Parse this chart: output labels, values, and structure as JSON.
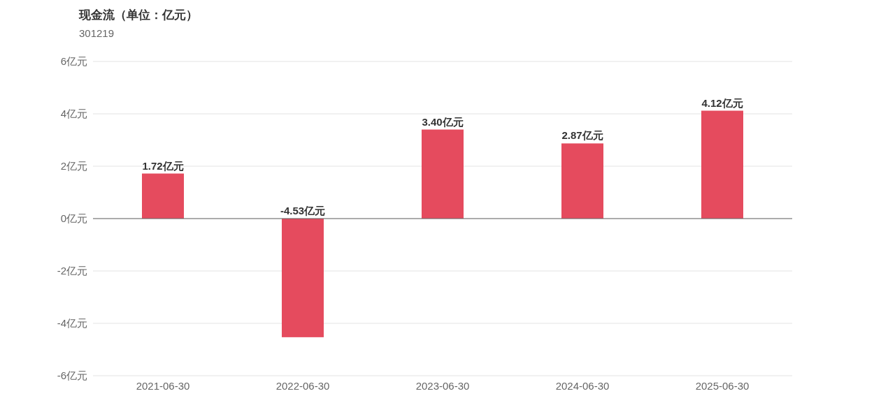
{
  "chart_data": {
    "type": "bar",
    "title": "现金流（单位：亿元）",
    "subtitle": "301219",
    "categories": [
      "2021-06-30",
      "2022-06-30",
      "2023-06-30",
      "2024-06-30",
      "2025-06-30"
    ],
    "values": [
      1.72,
      -4.53,
      3.4,
      2.87,
      4.12
    ],
    "value_labels": [
      "1.72亿元",
      "-4.53亿元",
      "3.40亿元",
      "2.87亿元",
      "4.12亿元"
    ],
    "color": "#e54b5e",
    "ylim": [
      -6,
      6
    ],
    "yticks": [
      {
        "value": -6,
        "label": "-6亿元"
      },
      {
        "value": -4,
        "label": "-4亿元"
      },
      {
        "value": -2,
        "label": "-2亿元"
      },
      {
        "value": 0,
        "label": "0亿元"
      },
      {
        "value": 2,
        "label": "2亿元"
      },
      {
        "value": 4,
        "label": "4亿元"
      },
      {
        "value": 6,
        "label": "6亿元"
      }
    ],
    "grid": "y"
  }
}
